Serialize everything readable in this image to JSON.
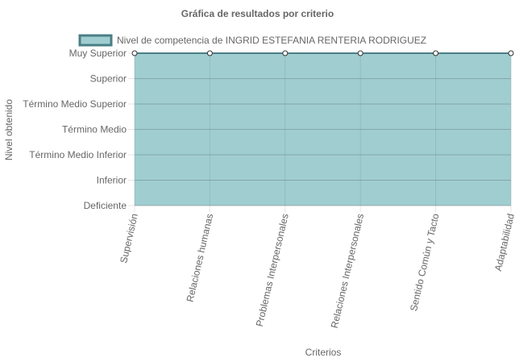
{
  "chart_data": {
    "type": "area",
    "title": "Gráfica de resultados por criterio",
    "xlabel": "Criterios",
    "ylabel": "Nivel obtenido",
    "categories": [
      "Supervisión",
      "Relaciones humanas",
      "Problemas Interpersonales",
      "Relaciones Interpersonales",
      "Sentido Común y Tacto",
      "Adaptabilidad"
    ],
    "y_levels": [
      "Deficiente",
      "Inferior",
      "Término Medio Inferior",
      "Término Medio",
      "Término Medio Superior",
      "Superior",
      "Muy Superior"
    ],
    "series": [
      {
        "name": "Nivel de competencia de INGRID ESTEFANIA RENTERIA RODRIGUEZ",
        "values": [
          "Muy Superior",
          "Muy Superior",
          "Muy Superior",
          "Muy Superior",
          "Muy Superior",
          "Muy Superior"
        ],
        "fill_color": "#a0cdd0",
        "line_color": "#4a7f86",
        "point_color": "#ffffff"
      }
    ],
    "grid": true,
    "legend_position": "top"
  }
}
